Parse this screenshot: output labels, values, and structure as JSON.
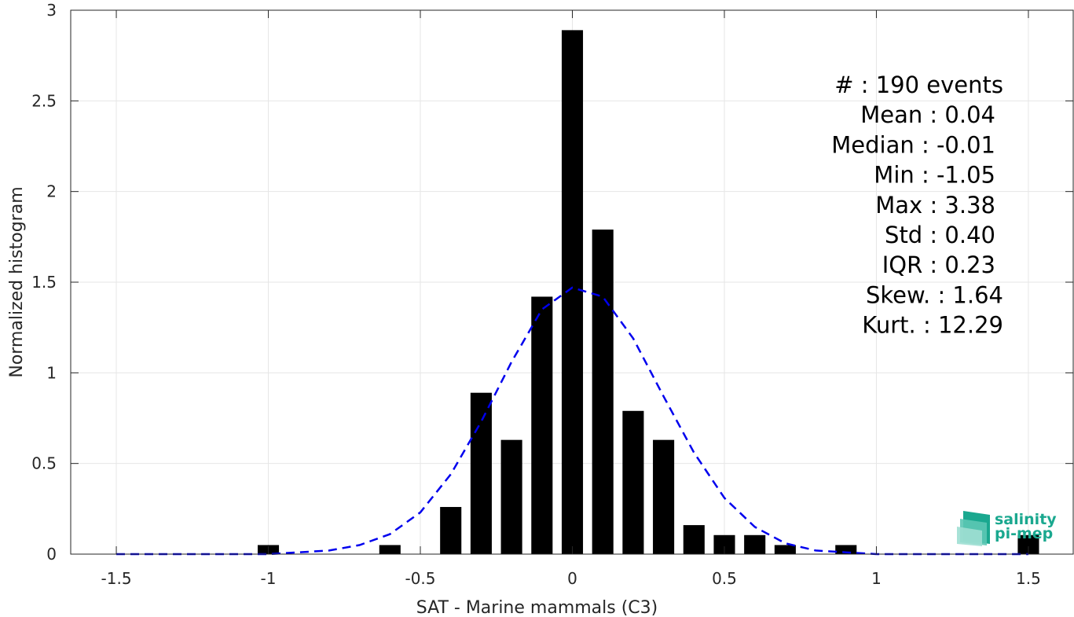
{
  "chart_data": {
    "type": "bar",
    "xlabel": "SAT - Marine mammals (C3)",
    "ylabel": "Normalized histogram",
    "xlim": [
      -1.65,
      1.65
    ],
    "ylim": [
      0,
      3
    ],
    "grid": true,
    "xticks": [
      -1.5,
      -1,
      -0.5,
      0,
      0.5,
      1,
      1.5
    ],
    "xtick_labels": [
      "-1.5",
      "-1",
      "-0.5",
      "0",
      "0.5",
      "1",
      "1.5"
    ],
    "yticks": [
      0,
      0.5,
      1,
      1.5,
      2,
      2.5,
      3
    ],
    "ytick_labels": [
      "0",
      "0.5",
      "1",
      "1.5",
      "2",
      "2.5",
      "3"
    ],
    "bar_width": 0.07,
    "bars": {
      "x": [
        -1.0,
        -0.6,
        -0.4,
        -0.3,
        -0.2,
        -0.1,
        0.0,
        0.1,
        0.2,
        0.3,
        0.4,
        0.5,
        0.6,
        0.7,
        0.9,
        1.5
      ],
      "values": [
        0.05,
        0.05,
        0.26,
        0.89,
        0.63,
        1.42,
        2.89,
        1.79,
        0.79,
        0.63,
        0.16,
        0.105,
        0.105,
        0.05,
        0.05,
        0.105
      ],
      "color": "#000000"
    },
    "fit_curve": {
      "style": "dashed",
      "color": "#0000ee",
      "x": [
        -1.5,
        -1.4,
        -1.3,
        -1.2,
        -1.1,
        -1.0,
        -0.9,
        -0.8,
        -0.7,
        -0.6,
        -0.5,
        -0.4,
        -0.3,
        -0.2,
        -0.1,
        0.0,
        0.1,
        0.2,
        0.3,
        0.4,
        0.5,
        0.6,
        0.7,
        0.8,
        0.9,
        1.0,
        1.1,
        1.2,
        1.3,
        1.4,
        1.5
      ],
      "y": [
        0.0,
        0.0,
        0.0,
        0.0,
        0.0,
        0.0,
        0.01,
        0.02,
        0.05,
        0.11,
        0.23,
        0.44,
        0.73,
        1.06,
        1.35,
        1.47,
        1.42,
        1.19,
        0.87,
        0.56,
        0.31,
        0.15,
        0.06,
        0.02,
        0.01,
        0.0,
        0.0,
        0.0,
        0.0,
        0.0,
        0.0
      ]
    },
    "annotations": [
      "#  : 190 events",
      "Mean : 0.04",
      "Median : -0.01",
      "Min : -1.05",
      "Max : 3.38",
      "Std : 0.40",
      "IQR : 0.23",
      "Skew. : 1.64",
      "Kurt. : 12.29"
    ]
  },
  "logo": {
    "line1": "salinity",
    "line2": "pi-mep",
    "color": "#1aa88f"
  }
}
